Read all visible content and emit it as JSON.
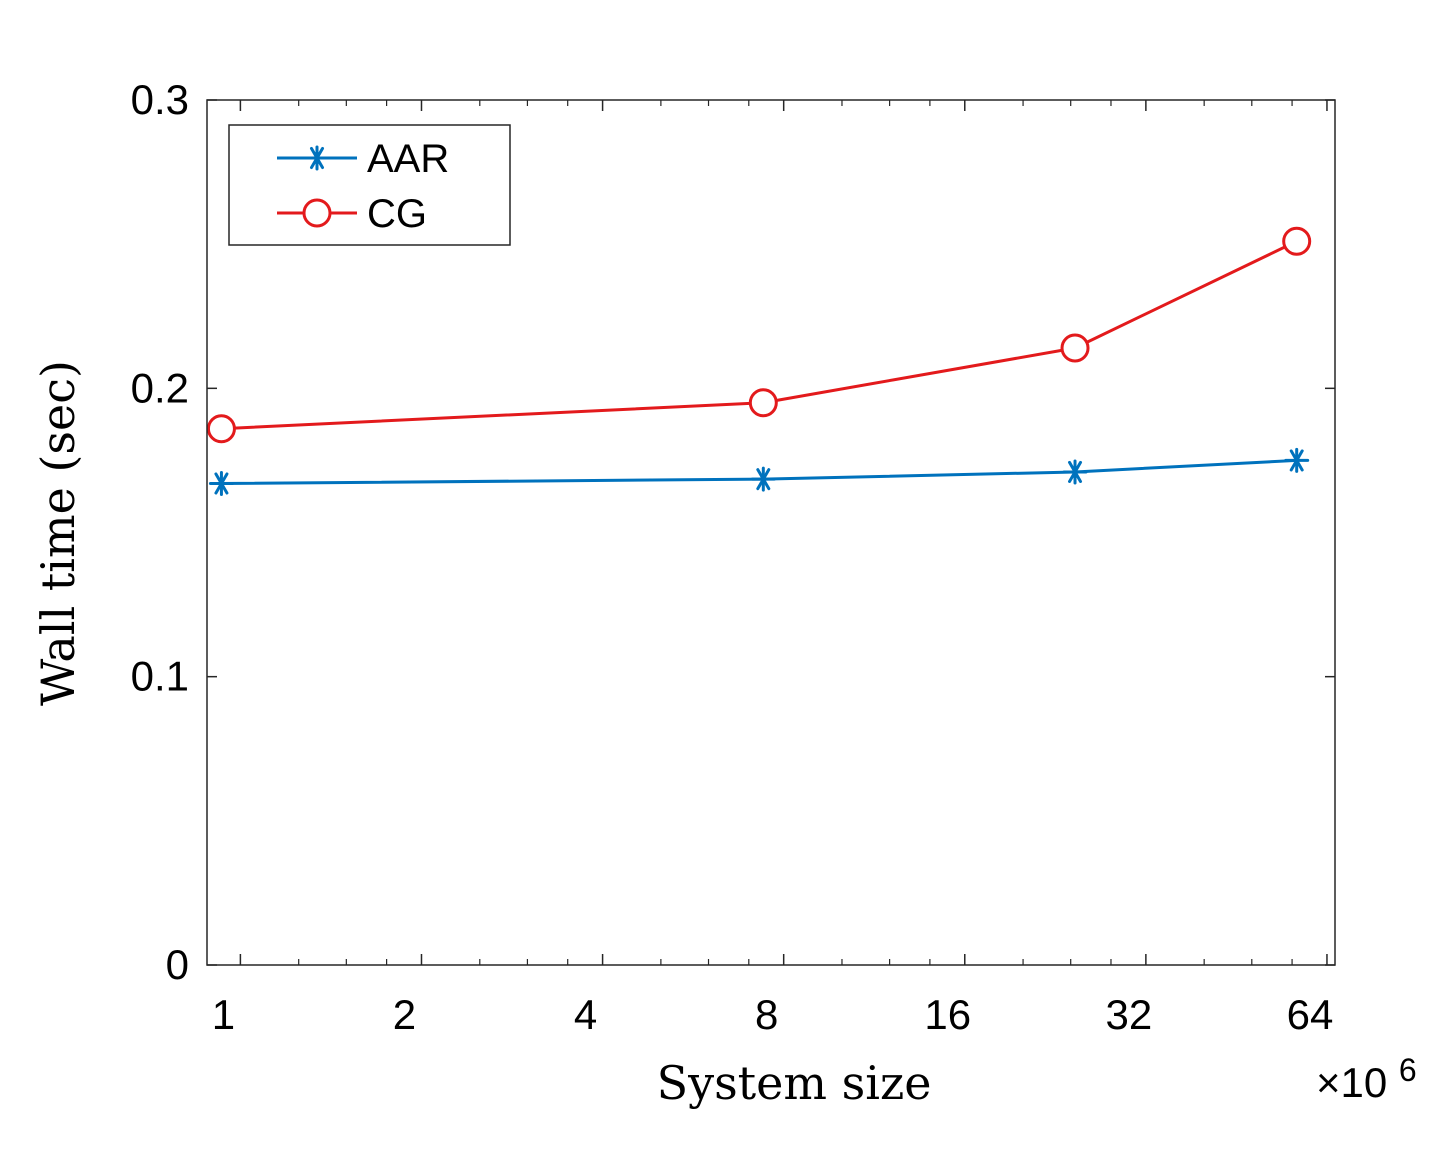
{
  "chart_data": {
    "type": "line",
    "title": "",
    "xlabel": "System size",
    "ylabel": "Wall time (sec)",
    "x_scale": "log2",
    "x_multiplier_label": "×10",
    "x_multiplier_exponent": "6",
    "xlim": [
      0.88,
      66
    ],
    "ylim": [
      0,
      0.3
    ],
    "x_ticks": [
      1,
      2,
      4,
      8,
      16,
      32,
      64
    ],
    "x_tick_labels": [
      "1",
      "2",
      "4",
      "8",
      "16",
      "32",
      "64"
    ],
    "y_ticks": [
      0,
      0.1,
      0.2,
      0.3
    ],
    "y_tick_labels": [
      "0",
      "0.1",
      "0.2",
      "0.3"
    ],
    "grid": false,
    "legend_position": "top-left",
    "x": [
      0.93,
      7.4,
      24.4,
      57
    ],
    "series": [
      {
        "name": "AAR",
        "color": "#0072BD",
        "marker": "asterisk",
        "values": [
          0.167,
          0.1685,
          0.171,
          0.175
        ]
      },
      {
        "name": "CG",
        "color": "#E31A1C",
        "marker": "circle",
        "values": [
          0.186,
          0.195,
          0.214,
          0.251
        ]
      }
    ]
  }
}
